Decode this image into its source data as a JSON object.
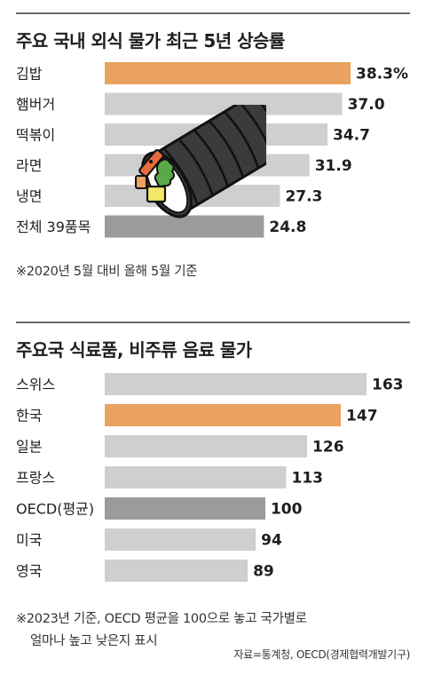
{
  "chart_data": [
    {
      "type": "bar",
      "orientation": "horizontal",
      "title": "주요 국내 외식 물가 최근 5년 상승률",
      "categories": [
        "김밥",
        "햄버거",
        "떡볶이",
        "라면",
        "냉면",
        "전체 39품목"
      ],
      "values": [
        38.3,
        37.0,
        34.7,
        31.9,
        27.3,
        24.8
      ],
      "value_labels": [
        "38.3%",
        "37.0",
        "34.7",
        "31.9",
        "27.3",
        "24.8"
      ],
      "highlight": [
        "김밥"
      ],
      "reference": [
        "전체 39품목"
      ],
      "note": "※2020년 5월 대비 올해 5월 기준",
      "xlim": [
        0,
        38.3
      ]
    },
    {
      "type": "bar",
      "orientation": "horizontal",
      "title": "주요국 식료품, 비주류 음료 물가",
      "categories": [
        "스위스",
        "한국",
        "일본",
        "프랑스",
        "OECD(평균)",
        "미국",
        "영국"
      ],
      "values": [
        163,
        147,
        126,
        113,
        100,
        94,
        89
      ],
      "value_labels": [
        "163",
        "147",
        "126",
        "113",
        "100",
        "94",
        "89"
      ],
      "highlight": [
        "한국"
      ],
      "reference": [
        "OECD(평균)"
      ],
      "note_line1": "※2023년 기준, OECD 평균을 100으로 놓고 국가별로",
      "note_line2": "얼마나 높고 낮은지 표시",
      "source": "자료=통계청, OECD(경제협력개발기구)",
      "xlim": [
        0,
        163
      ]
    }
  ],
  "colors": {
    "default_bar": "#cfcfcf",
    "highlight_bar": "#e9a25f",
    "reference_bar": "#9b9b9b"
  },
  "illustration": "gimbap-roll-icon"
}
